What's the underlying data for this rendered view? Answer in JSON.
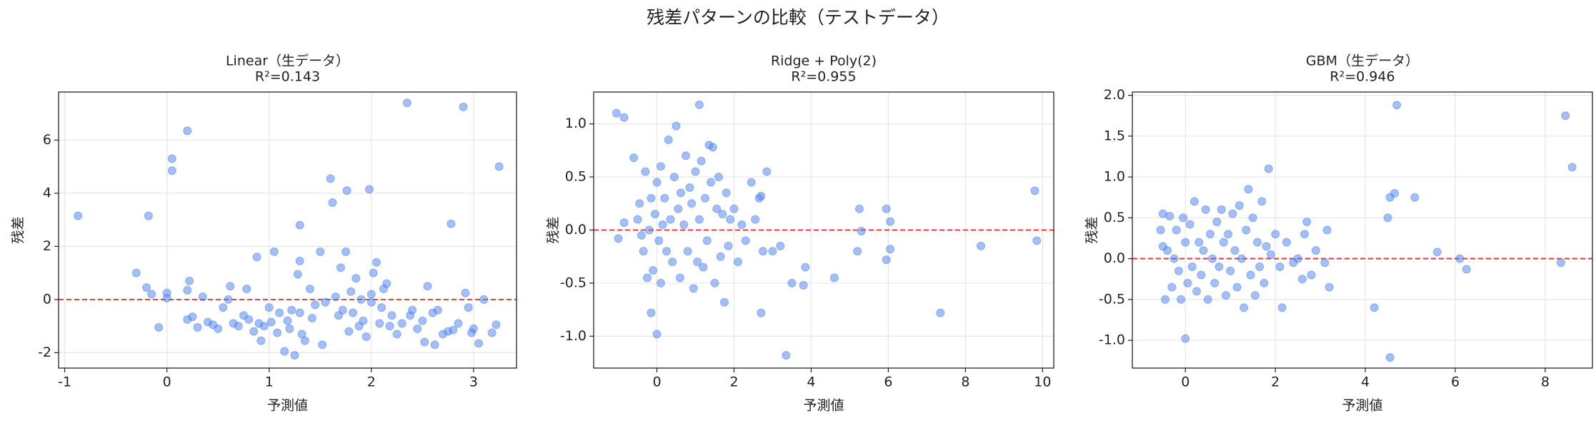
{
  "title": "残差パターンの比較（テストデータ）",
  "chart_data": [
    {
      "type": "scatter",
      "title": "Linear（生データ）",
      "subtitle": "R²=0.143",
      "xlabel": "予測値",
      "ylabel": "残差",
      "xlim": [
        -1.06,
        3.42
      ],
      "ylim": [
        -2.58,
        7.81
      ],
      "xticks": [
        -1,
        0,
        1,
        2,
        3
      ],
      "yticks": [
        -2,
        0,
        2,
        4,
        6
      ],
      "grid": true,
      "color": "#4a7ff0",
      "alpha": 0.5,
      "hline": {
        "value": 0,
        "color": "#e32b2b"
      },
      "x": [
        -0.87,
        -0.18,
        0.05,
        0.05,
        0.2,
        -0.3,
        -0.2,
        -0.15,
        -0.08,
        0.0,
        0.0,
        0.2,
        0.22,
        0.2,
        0.25,
        0.3,
        0.35,
        0.4,
        0.45,
        0.5,
        0.55,
        0.6,
        0.62,
        0.65,
        0.7,
        0.75,
        0.78,
        0.8,
        0.85,
        0.88,
        0.9,
        0.92,
        0.95,
        1.0,
        1.02,
        1.05,
        1.08,
        1.1,
        1.15,
        1.18,
        1.2,
        1.22,
        1.25,
        1.28,
        1.3,
        1.3,
        1.32,
        1.35,
        1.3,
        1.4,
        1.42,
        1.45,
        1.5,
        1.52,
        1.55,
        1.6,
        1.62,
        1.65,
        1.68,
        1.7,
        1.72,
        1.75,
        1.76,
        1.78,
        1.8,
        1.82,
        1.85,
        1.88,
        1.9,
        1.92,
        1.95,
        1.98,
        2.0,
        2.0,
        2.02,
        2.05,
        2.08,
        2.1,
        2.12,
        2.15,
        2.18,
        2.2,
        2.25,
        2.3,
        2.35,
        2.38,
        2.4,
        2.45,
        2.5,
        2.52,
        2.55,
        2.6,
        2.62,
        2.65,
        2.7,
        2.75,
        2.78,
        2.8,
        2.85,
        2.9,
        2.92,
        2.95,
        2.98,
        3.0,
        3.05,
        3.1,
        3.18,
        3.22,
        3.25
      ],
      "y": [
        3.15,
        3.15,
        5.3,
        4.85,
        6.35,
        1.0,
        0.45,
        0.2,
        -1.05,
        0.05,
        0.25,
        0.35,
        0.7,
        -0.75,
        -0.65,
        -1.05,
        0.1,
        -0.85,
        -0.95,
        -1.1,
        -0.3,
        0.0,
        0.5,
        -0.9,
        -1.0,
        -0.6,
        0.4,
        -0.75,
        -1.2,
        1.6,
        -0.9,
        -1.55,
        -1.0,
        -0.3,
        -0.85,
        1.8,
        -1.25,
        -0.5,
        -1.95,
        -0.8,
        -1.1,
        -0.4,
        -2.1,
        0.95,
        1.45,
        -0.5,
        -1.3,
        -1.55,
        2.8,
        0.4,
        -0.7,
        -0.2,
        1.8,
        -1.7,
        -0.1,
        4.55,
        3.65,
        0.1,
        -0.6,
        1.2,
        -0.4,
        1.8,
        4.1,
        -1.2,
        0.3,
        -0.5,
        0.8,
        -1.0,
        0.0,
        -0.8,
        -1.4,
        4.15,
        0.2,
        -0.1,
        1.0,
        1.4,
        -0.9,
        -0.3,
        0.4,
        0.6,
        -1.0,
        -0.6,
        -1.3,
        -0.9,
        7.4,
        -0.6,
        -0.4,
        -1.1,
        -0.8,
        -1.6,
        0.5,
        -0.5,
        -1.7,
        -0.4,
        -1.3,
        -1.2,
        2.85,
        -1.15,
        -0.9,
        7.25,
        0.25,
        -0.3,
        -1.25,
        -1.1,
        -1.65,
        0.0,
        -1.25,
        -0.95,
        5.0
      ]
    },
    {
      "type": "scatter",
      "title": "Ridge + Poly(2)",
      "subtitle": "R²=0.955",
      "xlabel": "予測値",
      "ylabel": "残差",
      "xlim": [
        -1.64,
        10.29
      ],
      "ylim": [
        -1.3,
        1.3
      ],
      "xticks": [
        0,
        2,
        4,
        6,
        8,
        10
      ],
      "yticks": [
        {
          "value": -1.0,
          "label": "-1.0"
        },
        {
          "value": -0.5,
          "label": "-0.5"
        },
        {
          "value": 0.0,
          "label": "0.0"
        },
        {
          "value": 0.5,
          "label": "0.5"
        },
        {
          "value": 1.0,
          "label": "1.0"
        }
      ],
      "grid": true,
      "color": "#4a7ff0",
      "alpha": 0.5,
      "hline": {
        "value": 0,
        "color": "#e32b2b"
      },
      "x": [
        -1.05,
        -0.85,
        -1.0,
        -0.85,
        -0.6,
        -0.5,
        -0.45,
        -0.4,
        -0.35,
        -0.3,
        -0.25,
        -0.2,
        -0.15,
        -0.15,
        -0.1,
        -0.05,
        0.0,
        0.0,
        0.05,
        0.1,
        0.1,
        0.15,
        0.2,
        0.25,
        0.3,
        0.35,
        0.4,
        0.45,
        0.5,
        0.55,
        0.6,
        0.62,
        0.7,
        0.75,
        0.8,
        0.85,
        0.9,
        0.95,
        1.0,
        1.05,
        1.1,
        1.1,
        1.15,
        1.2,
        1.25,
        1.3,
        1.35,
        1.4,
        1.45,
        1.5,
        1.55,
        1.6,
        1.65,
        1.7,
        1.75,
        1.8,
        1.85,
        1.9,
        2.0,
        2.1,
        2.2,
        2.3,
        2.45,
        2.55,
        2.65,
        2.7,
        2.7,
        2.75,
        2.85,
        3.0,
        3.2,
        3.35,
        3.5,
        3.8,
        3.85,
        4.6,
        5.2,
        5.25,
        5.3,
        5.95,
        5.95,
        6.05,
        6.05,
        7.35,
        8.4,
        9.8,
        9.85
      ],
      "y": [
        1.1,
        1.06,
        -0.08,
        0.07,
        0.68,
        0.1,
        0.25,
        -0.05,
        -0.2,
        0.55,
        -0.45,
        0.0,
        0.3,
        -0.78,
        -0.38,
        0.15,
        -0.98,
        0.45,
        -0.1,
        -0.5,
        0.6,
        0.05,
        0.3,
        -0.2,
        0.85,
        0.1,
        -0.3,
        0.5,
        0.98,
        0.2,
        -0.45,
        0.35,
        0.05,
        0.7,
        -0.2,
        0.4,
        0.25,
        -0.55,
        0.55,
        -0.3,
        1.18,
        0.1,
        0.65,
        -0.35,
        0.3,
        -0.1,
        0.8,
        0.45,
        0.78,
        -0.5,
        0.2,
        0.5,
        -0.25,
        0.15,
        -0.68,
        0.35,
        -0.15,
        0.1,
        0.2,
        -0.3,
        0.05,
        -0.1,
        0.45,
        0.1,
        0.3,
        0.32,
        -0.78,
        -0.2,
        0.55,
        -0.2,
        -0.15,
        -1.18,
        -0.5,
        -0.52,
        -0.35,
        -0.45,
        -0.2,
        0.2,
        -0.01,
        0.2,
        -0.28,
        -0.18,
        0.08,
        -0.78,
        -0.15,
        0.37,
        -0.1
      ]
    },
    {
      "type": "scatter",
      "title": "GBM（生データ）",
      "subtitle": "R²=0.946",
      "xlabel": "予測値",
      "ylabel": "残差",
      "xlim": [
        -1.18,
        9.05
      ],
      "ylim": [
        -1.34,
        2.04
      ],
      "xticks": [
        0,
        2,
        4,
        6,
        8
      ],
      "yticks": [
        {
          "value": -1.0,
          "label": "-1.0"
        },
        {
          "value": -0.5,
          "label": "-0.5"
        },
        {
          "value": 0.0,
          "label": "0.0"
        },
        {
          "value": 0.5,
          "label": "0.5"
        },
        {
          "value": 1.0,
          "label": "1.0"
        },
        {
          "value": 1.5,
          "label": "1.5"
        },
        {
          "value": 2.0,
          "label": "2.0"
        }
      ],
      "grid": true,
      "color": "#4a7ff0",
      "alpha": 0.5,
      "hline": {
        "value": 0,
        "color": "#e32b2b"
      },
      "x": [
        -0.5,
        -0.55,
        -0.5,
        -0.45,
        -0.4,
        -0.35,
        -0.3,
        -0.25,
        -0.2,
        -0.15,
        -0.1,
        -0.05,
        0.0,
        0.0,
        0.05,
        0.1,
        0.15,
        0.2,
        0.25,
        0.3,
        0.35,
        0.4,
        0.45,
        0.5,
        0.55,
        0.6,
        0.65,
        0.7,
        0.75,
        0.8,
        0.85,
        0.9,
        0.95,
        1.0,
        1.05,
        1.1,
        1.15,
        1.2,
        1.25,
        1.3,
        1.35,
        1.4,
        1.45,
        1.5,
        1.55,
        1.6,
        1.65,
        1.7,
        1.75,
        1.8,
        1.85,
        1.9,
        2.0,
        2.1,
        2.15,
        2.25,
        2.4,
        2.5,
        2.6,
        2.65,
        2.7,
        2.8,
        2.9,
        3.1,
        3.15,
        3.2,
        4.2,
        4.5,
        4.55,
        4.55,
        4.65,
        4.7,
        5.1,
        5.6,
        6.1,
        6.25,
        8.35,
        8.45,
        8.6
      ],
      "y": [
        0.15,
        0.35,
        0.55,
        -0.5,
        0.1,
        0.52,
        -0.35,
        0.0,
        0.35,
        -0.15,
        -0.5,
        0.5,
        -0.98,
        0.2,
        -0.3,
        0.42,
        -0.1,
        0.7,
        -0.4,
        0.2,
        -0.2,
        0.1,
        0.6,
        -0.5,
        0.3,
        0.0,
        -0.3,
        0.45,
        -0.1,
        0.6,
        0.2,
        -0.45,
        0.3,
        -0.15,
        0.55,
        0.1,
        -0.35,
        0.65,
        0.0,
        -0.6,
        0.35,
        0.85,
        -0.2,
        0.5,
        -0.45,
        0.2,
        -0.1,
        0.7,
        -0.3,
        0.15,
        1.1,
        0.05,
        0.3,
        -0.1,
        -0.6,
        0.2,
        -0.05,
        0.0,
        -0.25,
        0.3,
        0.45,
        -0.2,
        0.1,
        -0.05,
        0.35,
        -0.35,
        -0.6,
        0.5,
        0.75,
        -1.21,
        0.8,
        1.88,
        0.75,
        0.08,
        0.0,
        -0.13,
        -0.05,
        1.75,
        1.12
      ]
    }
  ]
}
